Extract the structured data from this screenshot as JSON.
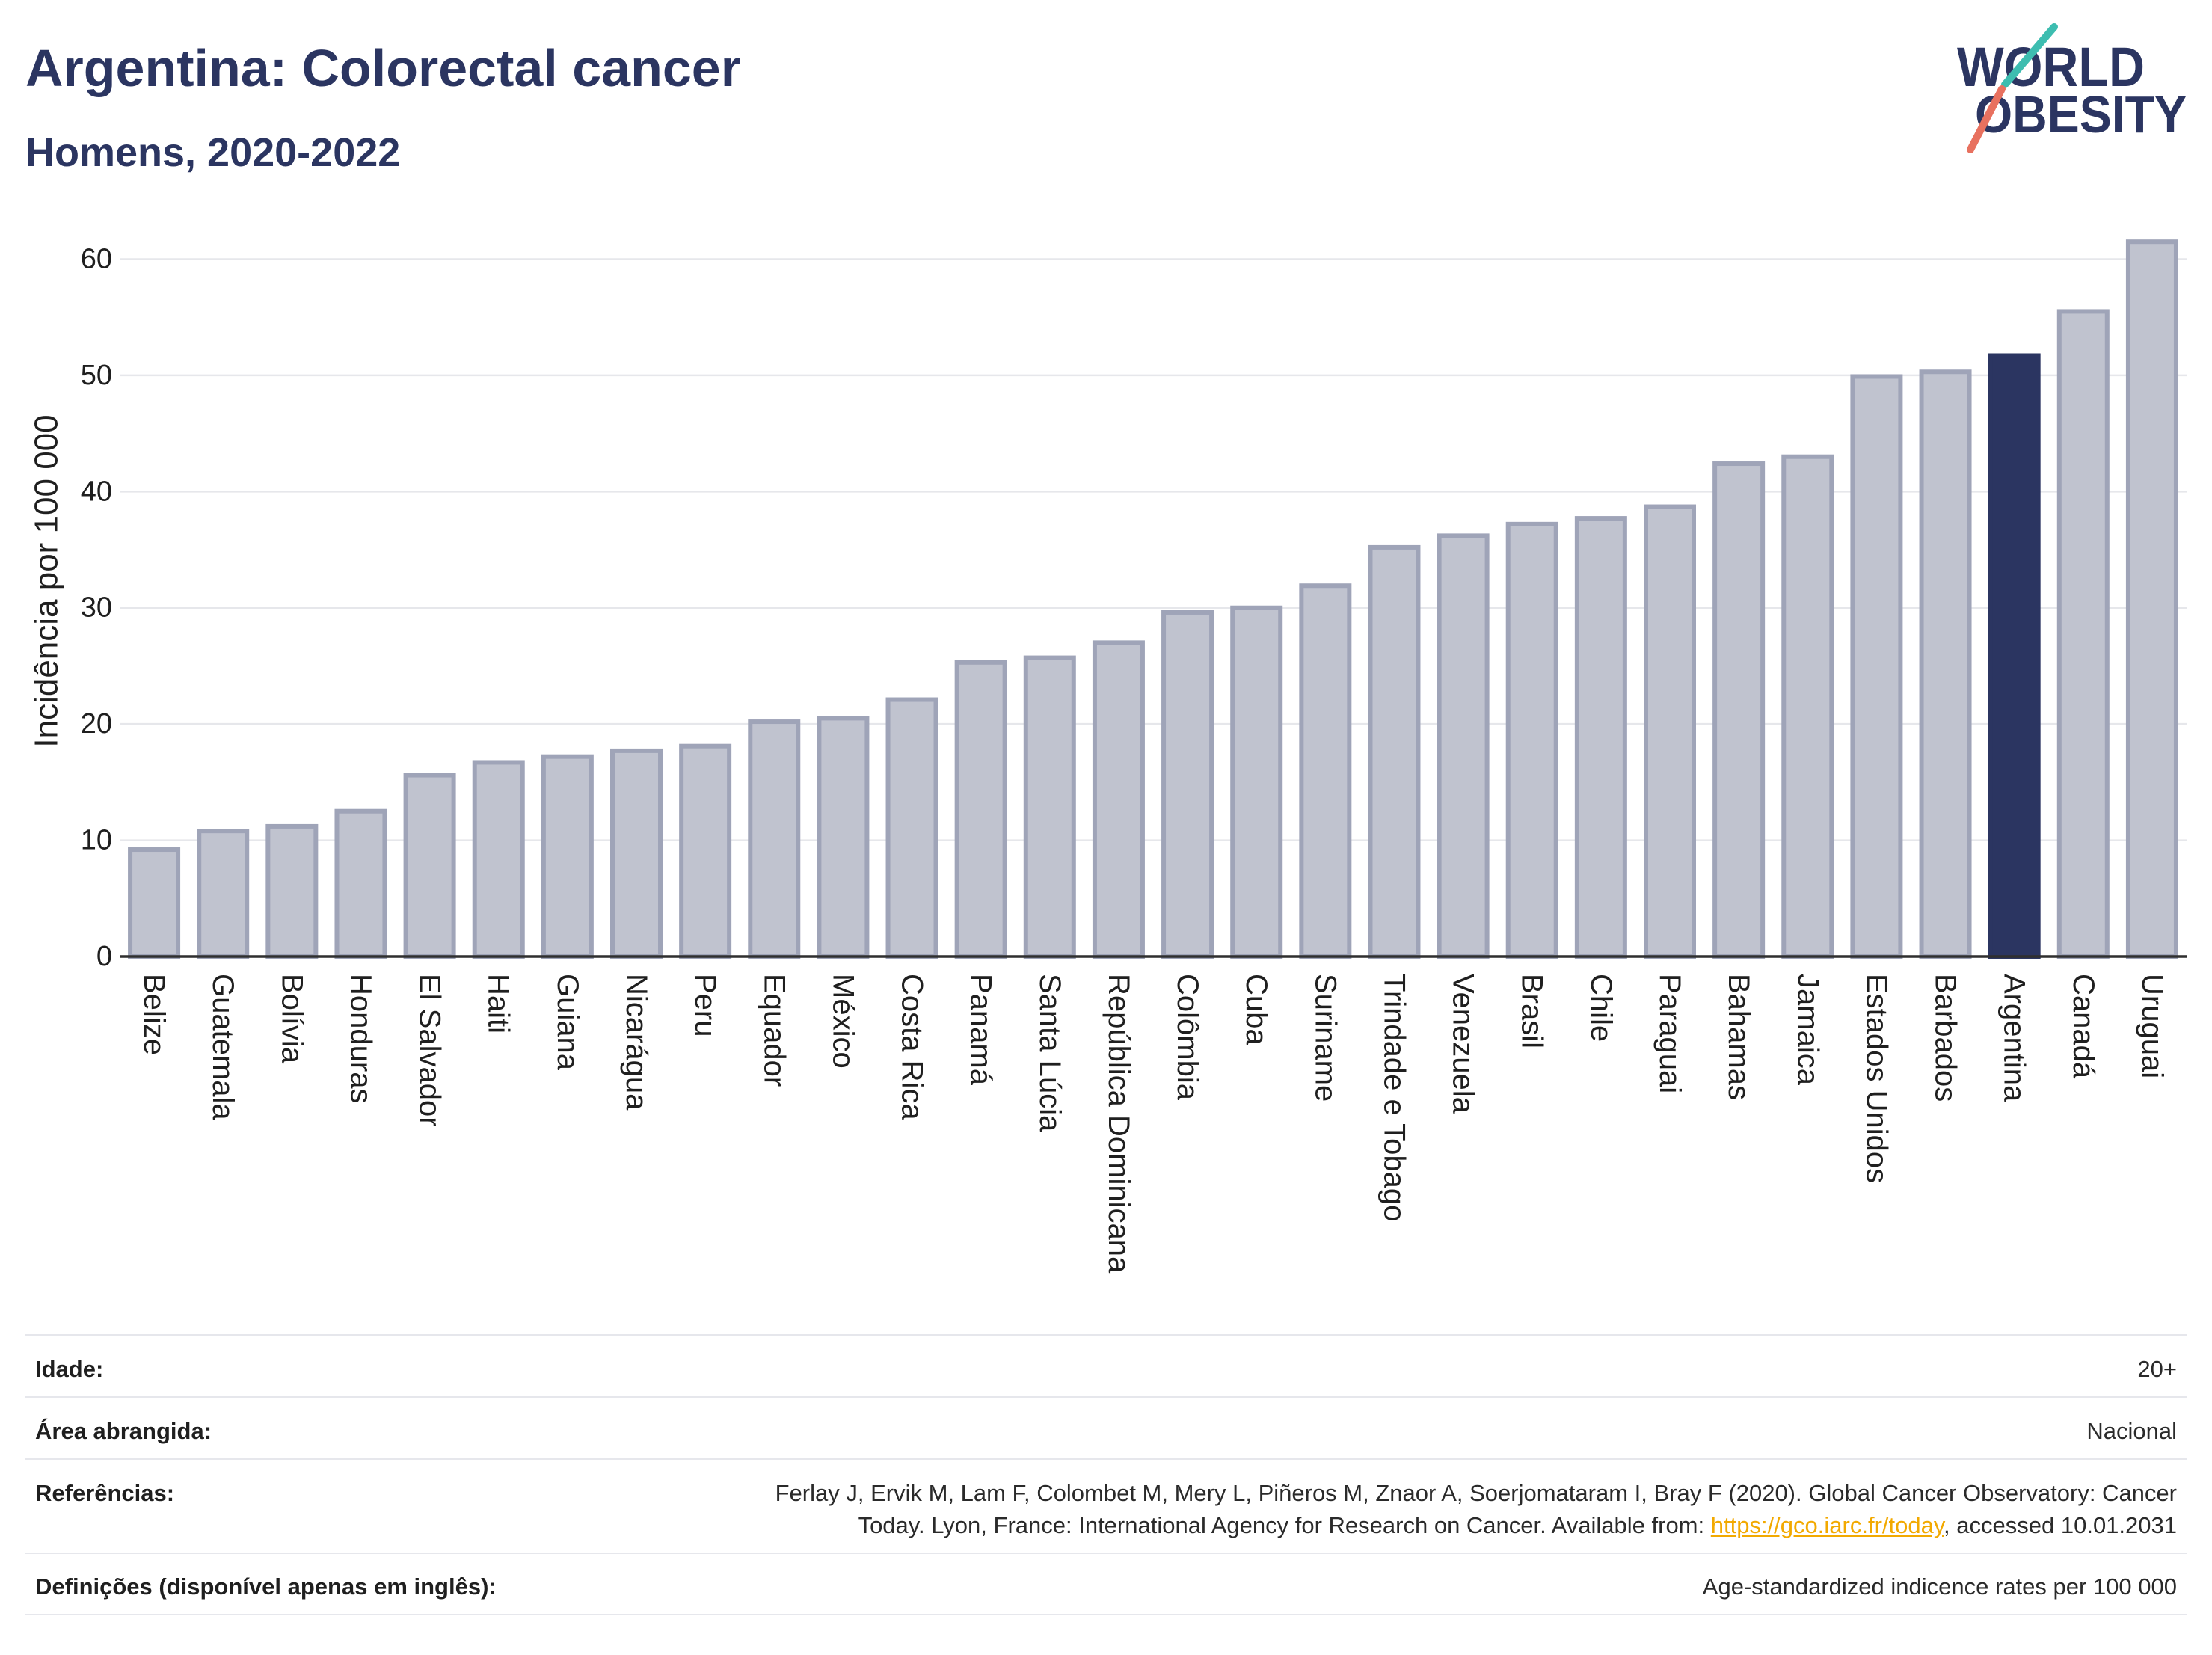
{
  "logo": {
    "line1": "WORLD",
    "line2": "OBESITY"
  },
  "colors": {
    "navy": "#2b3561",
    "bar_fill": "#c0c3cf",
    "bar_border": "#9fa4b8",
    "highlight_fill": "#2b3561",
    "gridline": "#e6e7eb",
    "axis_line": "#2f2f2f",
    "logo_teal": "#3dbdb0",
    "logo_coral": "#e8715f",
    "link": "#f2a900"
  },
  "chart_data": {
    "type": "bar",
    "title": "Argentina: Colorectal cancer",
    "subtitle": "Homens, 2020-2022",
    "ylabel": "Incidência por 100 000",
    "ylim": [
      0,
      64.6
    ],
    "yticks": [
      0,
      10,
      20,
      30,
      40,
      50,
      60
    ],
    "grid": true,
    "highlight": "Argentina",
    "categories": [
      "Belize",
      "Guatemala",
      "Bolívia",
      "Honduras",
      "El Salvador",
      "Haiti",
      "Guiana",
      "Nicarágua",
      "Peru",
      "Equador",
      "México",
      "Costa Rica",
      "Panamá",
      "Santa Lúcia",
      "República Dominicana",
      "Colômbia",
      "Cuba",
      "Suriname",
      "Trindade e Tobago",
      "Venezuela",
      "Brasil",
      "Chile",
      "Paraguai",
      "Bahamas",
      "Jamaica",
      "Estados Unidos",
      "Barbados",
      "Argentina",
      "Canadá",
      "Uruguai"
    ],
    "values": [
      9.2,
      10.8,
      11.2,
      12.5,
      15.6,
      16.7,
      17.2,
      17.7,
      18.1,
      20.2,
      20.5,
      22.1,
      25.3,
      25.7,
      27.0,
      29.6,
      30.0,
      31.9,
      35.2,
      36.2,
      37.2,
      37.7,
      38.7,
      42.4,
      43.0,
      49.9,
      50.3,
      51.7,
      55.5,
      61.5
    ]
  },
  "footer": {
    "age": {
      "label": "Idade:",
      "value": "20+"
    },
    "area": {
      "label": "Área abrangida:",
      "value": "Nacional"
    },
    "references": {
      "label": "Referências:",
      "line1": "Ferlay J, Ervik M, Lam F, Colombet M, Mery L, Piñeros M, Znaor A, Soerjomataram I, Bray F (2020). Global Cancer Observatory: Cancer",
      "line2_before_link": "Today. Lyon, France: International Agency for Research on Cancer. Available from:",
      "link": "https://gco.iarc.fr/today",
      "line2_after_link": ", accessed 10.01.2031"
    },
    "definitions": {
      "label": "Definições (disponível apenas em inglês):",
      "value": "Age-standardized indicence rates per 100 000"
    }
  }
}
